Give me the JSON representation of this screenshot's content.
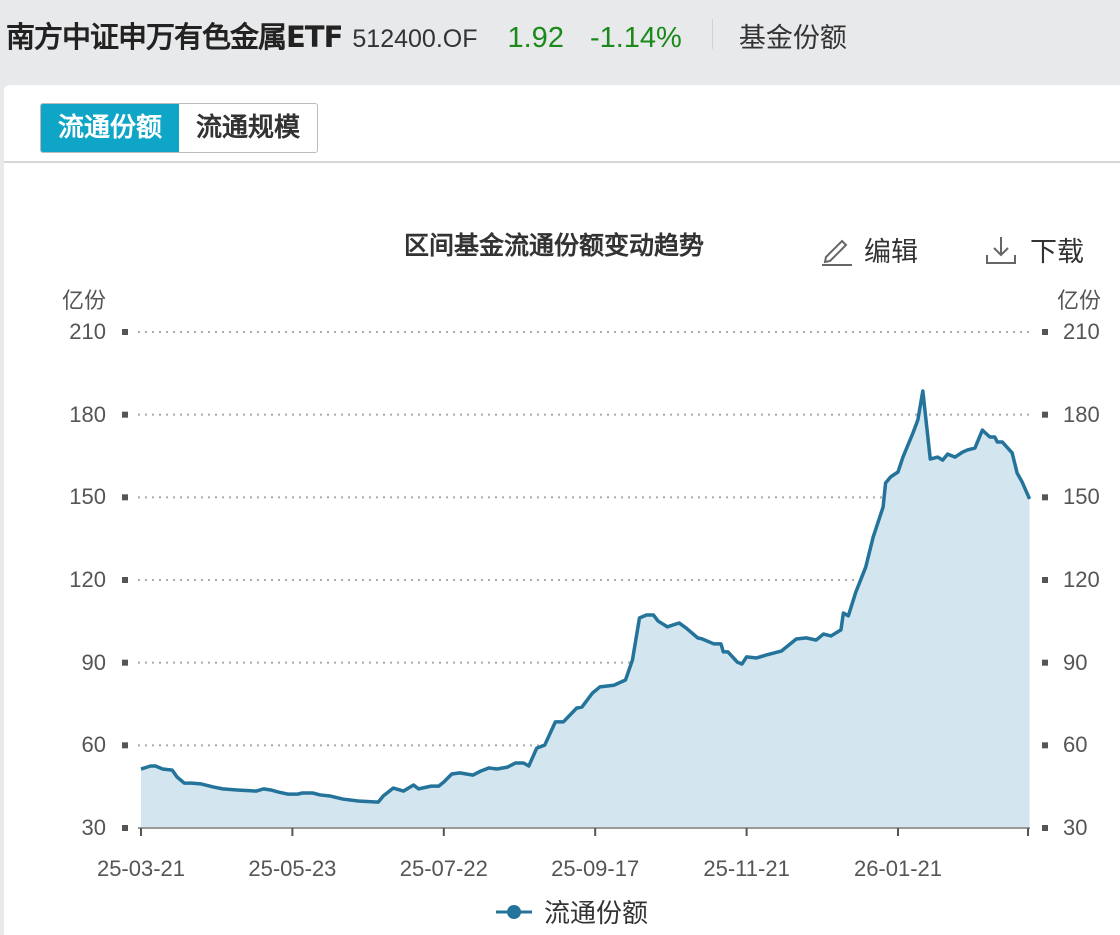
{
  "header": {
    "fund_name": "南方中证申万有色金属ETF",
    "code": "512400.OF",
    "price": "1.92",
    "change_pct": "-1.14%",
    "section_label": "基金份额",
    "change_color": "#1a8a1a"
  },
  "tabs": [
    {
      "label": "流通份额",
      "active": true
    },
    {
      "label": "流通规模",
      "active": false
    }
  ],
  "toolbar": {
    "edit_label": "编辑",
    "download_label": "下载",
    "edit_icon": "pencil-icon",
    "download_icon": "download-icon"
  },
  "chart_data": {
    "type": "area",
    "title": "区间基金流通份额变动趋势",
    "ylabel_left": "亿份",
    "ylabel_right": "亿份",
    "ylim": [
      30,
      210
    ],
    "yticks": [
      "30",
      "60",
      "90",
      "120",
      "150",
      "180",
      "210"
    ],
    "xticks": [
      "25-03-21",
      "25-05-23",
      "25-07-22",
      "25-09-17",
      "25-11-21",
      "26-01-21"
    ],
    "grid": "horizontal dotted",
    "legend": "bottom",
    "line_color": "#24739a",
    "fill_color": "#d3e5ee",
    "series": [
      {
        "name": "流通份额",
        "points": [
          [
            "25-03-21",
            51.4
          ],
          [
            "25-03-25",
            52.5
          ],
          [
            "25-03-27",
            52.5
          ],
          [
            "25-03-30",
            51.4
          ],
          [
            "25-04-03",
            51.0
          ],
          [
            "25-04-05",
            48.5
          ],
          [
            "25-04-08",
            46.3
          ],
          [
            "25-04-11",
            46.3
          ],
          [
            "25-04-15",
            46.0
          ],
          [
            "25-04-20",
            44.9
          ],
          [
            "25-04-24",
            44.2
          ],
          [
            "25-04-30",
            43.8
          ],
          [
            "25-05-08",
            43.4
          ],
          [
            "25-05-11",
            44.2
          ],
          [
            "25-05-14",
            43.8
          ],
          [
            "25-05-17",
            43.1
          ],
          [
            "25-05-21",
            42.3
          ],
          [
            "25-05-25",
            42.3
          ],
          [
            "25-05-27",
            42.7
          ],
          [
            "25-05-31",
            42.7
          ],
          [
            "25-06-03",
            42.0
          ],
          [
            "25-06-07",
            41.6
          ],
          [
            "25-06-12",
            40.5
          ],
          [
            "25-06-18",
            39.8
          ],
          [
            "25-06-26",
            39.4
          ],
          [
            "25-06-28",
            41.6
          ],
          [
            "25-07-02",
            44.5
          ],
          [
            "25-07-06",
            43.4
          ],
          [
            "25-07-10",
            45.6
          ],
          [
            "25-07-12",
            44.2
          ],
          [
            "25-07-17",
            45.2
          ],
          [
            "25-07-20",
            45.2
          ],
          [
            "25-07-22",
            46.7
          ],
          [
            "25-07-25",
            49.6
          ],
          [
            "25-07-28",
            50.0
          ],
          [
            "25-08-02",
            49.2
          ],
          [
            "25-08-05",
            50.7
          ],
          [
            "25-08-08",
            51.8
          ],
          [
            "25-08-11",
            51.4
          ],
          [
            "25-08-15",
            52.1
          ],
          [
            "25-08-18",
            53.6
          ],
          [
            "25-08-21",
            53.6
          ],
          [
            "25-08-23",
            52.5
          ],
          [
            "25-08-26",
            59.0
          ],
          [
            "25-08-29",
            60.1
          ],
          [
            "25-09-02",
            68.5
          ],
          [
            "25-09-05",
            68.5
          ],
          [
            "25-09-10",
            73.5
          ],
          [
            "25-09-12",
            73.9
          ],
          [
            "25-09-16",
            79.0
          ],
          [
            "25-09-19",
            81.2
          ],
          [
            "25-09-25",
            81.8
          ],
          [
            "25-09-30",
            83.7
          ],
          [
            "25-10-03",
            91.0
          ],
          [
            "25-10-06",
            106.2
          ],
          [
            "25-10-09",
            107.3
          ],
          [
            "25-10-12",
            107.3
          ],
          [
            "25-10-14",
            105.1
          ],
          [
            "25-10-18",
            103.0
          ],
          [
            "25-10-23",
            104.4
          ],
          [
            "25-10-26",
            102.6
          ],
          [
            "25-10-31",
            99.0
          ],
          [
            "25-11-02",
            98.6
          ],
          [
            "25-11-07",
            96.8
          ],
          [
            "25-11-10",
            96.8
          ],
          [
            "25-11-11",
            93.9
          ],
          [
            "25-11-13",
            93.9
          ],
          [
            "25-11-17",
            90.2
          ],
          [
            "25-11-19",
            89.5
          ],
          [
            "25-11-21",
            92.1
          ],
          [
            "25-11-25",
            91.7
          ],
          [
            "25-11-29",
            92.8
          ],
          [
            "25-12-05",
            94.2
          ],
          [
            "25-12-11",
            98.6
          ],
          [
            "25-12-15",
            99.0
          ],
          [
            "25-12-19",
            98.2
          ],
          [
            "25-12-22",
            100.4
          ],
          [
            "25-12-25",
            99.7
          ],
          [
            "25-12-29",
            101.9
          ],
          [
            "25-12-30",
            108.0
          ],
          [
            "26-01-01",
            107.0
          ],
          [
            "26-01-04",
            115.6
          ],
          [
            "26-01-08",
            124.7
          ],
          [
            "26-01-11",
            135.6
          ],
          [
            "26-01-15",
            146.5
          ],
          [
            "26-01-16",
            155.2
          ],
          [
            "26-01-18",
            157.4
          ],
          [
            "26-01-21",
            159.2
          ],
          [
            "26-01-23",
            164.6
          ],
          [
            "26-01-27",
            173.3
          ],
          [
            "26-01-29",
            178.1
          ],
          [
            "26-01-31",
            188.6
          ],
          [
            "26-02-03",
            163.9
          ],
          [
            "26-02-06",
            164.6
          ],
          [
            "26-02-08",
            163.5
          ],
          [
            "26-02-10",
            165.7
          ],
          [
            "26-02-13",
            164.6
          ],
          [
            "26-02-16",
            166.4
          ],
          [
            "26-02-18",
            167.2
          ],
          [
            "26-02-21",
            167.9
          ],
          [
            "26-02-24",
            174.4
          ],
          [
            "26-02-27",
            171.9
          ],
          [
            "26-03-01",
            171.9
          ],
          [
            "26-03-02",
            170.1
          ],
          [
            "26-03-04",
            170.1
          ],
          [
            "26-03-08",
            166.1
          ],
          [
            "26-03-10",
            158.8
          ],
          [
            "26-03-12",
            155.6
          ],
          [
            "26-03-15",
            149.4
          ]
        ]
      }
    ]
  }
}
